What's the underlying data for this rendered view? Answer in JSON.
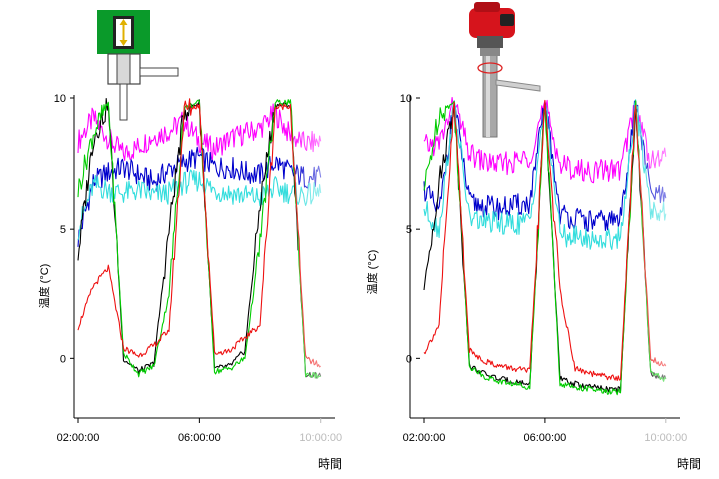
{
  "chart_data": [
    {
      "type": "line",
      "ylabel": "温度 (°C)",
      "xlabel": "時間",
      "ylim": [
        -2,
        10
      ],
      "xlim": [
        "02:00:00",
        "10:00:00"
      ],
      "y_ticks": [
        "0",
        "5",
        "10"
      ],
      "x_ticks": [
        "02:00:00",
        "06:00:00",
        "10:00:00"
      ],
      "grid": false,
      "icon": "green-pressure-sensor-icon",
      "series": [
        {
          "color": "#ff00ff",
          "x": [
            "02:00",
            "02:30",
            "03:00",
            "03:30",
            "04:00",
            "04:30",
            "05:00",
            "05:30",
            "06:00",
            "06:30",
            "07:00",
            "07:30",
            "08:00",
            "08:30",
            "09:00",
            "09:30",
            "10:00"
          ],
          "values": [
            8.4,
            9.3,
            8.5,
            7.9,
            8.2,
            8.6,
            8.8,
            9.2,
            8.4,
            8.1,
            8.5,
            8.7,
            8.9,
            9.5,
            8.6,
            8.3,
            8.4
          ]
        },
        {
          "color": "#0000cc",
          "x": [
            "02:00",
            "02:30",
            "03:00",
            "03:30",
            "04:00",
            "04:30",
            "05:00",
            "05:30",
            "06:00",
            "06:30",
            "07:00",
            "07:30",
            "08:00",
            "08:30",
            "09:00",
            "09:30",
            "10:00"
          ],
          "values": [
            4.6,
            6.8,
            7.2,
            7.4,
            7.1,
            6.8,
            7.3,
            7.6,
            7.8,
            7.4,
            7.4,
            7.2,
            7.1,
            7.6,
            7.2,
            7.0,
            7.0
          ]
        },
        {
          "color": "#33dddd",
          "x": [
            "02:00",
            "02:30",
            "03:00",
            "03:30",
            "04:00",
            "04:30",
            "05:00",
            "05:30",
            "06:00",
            "06:30",
            "07:00",
            "07:30",
            "08:00",
            "08:30",
            "09:00",
            "09:30",
            "10:00"
          ],
          "values": [
            5.0,
            6.7,
            6.5,
            6.4,
            6.5,
            6.3,
            6.4,
            6.8,
            6.9,
            6.5,
            6.4,
            6.3,
            6.2,
            6.6,
            6.4,
            6.3,
            6.4
          ]
        },
        {
          "color": "#000000",
          "x": [
            "02:00",
            "02:30",
            "03:00",
            "03:30",
            "04:00",
            "04:30",
            "05:00",
            "05:30",
            "06:00",
            "06:30",
            "07:00",
            "07:30",
            "08:00",
            "08:30",
            "09:00",
            "09:30",
            "10:00"
          ],
          "values": [
            4.0,
            8.5,
            9.8,
            0.0,
            -0.5,
            -0.2,
            5.0,
            9.6,
            9.9,
            -0.4,
            -0.3,
            0.3,
            6.0,
            9.8,
            9.8,
            -0.6,
            -0.7
          ]
        },
        {
          "color": "#00cc00",
          "x": [
            "02:00",
            "02:30",
            "03:00",
            "03:30",
            "04:00",
            "04:30",
            "05:00",
            "05:30",
            "06:00",
            "06:30",
            "07:00",
            "07:30",
            "08:00",
            "08:30",
            "09:00",
            "09:30",
            "10:00"
          ],
          "values": [
            6.5,
            8.7,
            9.9,
            0.2,
            -0.6,
            -0.3,
            2.5,
            9.7,
            9.9,
            -0.5,
            -0.4,
            0.0,
            4.5,
            9.9,
            9.9,
            -0.6,
            -0.7
          ]
        },
        {
          "color": "#ee1111",
          "x": [
            "02:00",
            "02:30",
            "03:00",
            "03:30",
            "04:00",
            "04:30",
            "05:00",
            "05:30",
            "06:00",
            "06:30",
            "07:00",
            "07:30",
            "08:00",
            "08:30",
            "09:00",
            "09:30",
            "10:00"
          ],
          "values": [
            1.2,
            2.8,
            3.5,
            0.4,
            0.1,
            0.5,
            1.1,
            9.6,
            9.8,
            0.2,
            0.3,
            0.8,
            1.3,
            9.7,
            9.8,
            0.0,
            -0.3
          ]
        }
      ]
    },
    {
      "type": "line",
      "ylabel": "温度 (°C)",
      "xlabel": "時間",
      "ylim": [
        -2,
        10
      ],
      "xlim": [
        "02:00:00",
        "10:00:00"
      ],
      "y_ticks": [
        "0",
        "5",
        "10"
      ],
      "x_ticks": [
        "02:00:00",
        "06:00:00",
        "10:00:00"
      ],
      "grid": false,
      "icon": "red-remote-sensor-icon",
      "series": [
        {
          "color": "#ff00ff",
          "x": [
            "02:00",
            "02:30",
            "03:00",
            "03:30",
            "04:00",
            "04:30",
            "05:00",
            "05:30",
            "06:00",
            "06:30",
            "07:00",
            "07:30",
            "08:00",
            "08:30",
            "09:00",
            "09:30",
            "10:00"
          ],
          "values": [
            8.2,
            8.3,
            9.9,
            7.9,
            7.6,
            7.5,
            7.6,
            7.8,
            9.9,
            7.5,
            7.3,
            7.2,
            7.3,
            7.3,
            9.9,
            7.6,
            7.8
          ]
        },
        {
          "color": "#0000cc",
          "x": [
            "02:00",
            "02:30",
            "03:00",
            "03:30",
            "04:00",
            "04:30",
            "05:00",
            "05:30",
            "06:00",
            "06:30",
            "07:00",
            "07:30",
            "08:00",
            "08:30",
            "09:00",
            "09:30",
            "10:00"
          ],
          "values": [
            6.6,
            5.6,
            9.9,
            6.0,
            5.9,
            5.8,
            5.9,
            6.0,
            9.9,
            5.6,
            5.4,
            5.3,
            5.3,
            5.4,
            9.9,
            6.4,
            6.2
          ]
        },
        {
          "color": "#33dddd",
          "x": [
            "02:00",
            "02:30",
            "03:00",
            "03:30",
            "04:00",
            "04:30",
            "05:00",
            "05:30",
            "06:00",
            "06:30",
            "07:00",
            "07:30",
            "08:00",
            "08:30",
            "09:00",
            "09:30",
            "10:00"
          ],
          "values": [
            5.8,
            5.0,
            9.9,
            5.4,
            5.3,
            5.2,
            5.2,
            5.3,
            9.9,
            4.8,
            4.7,
            4.6,
            4.6,
            4.7,
            9.9,
            5.8,
            5.6
          ]
        },
        {
          "color": "#000000",
          "x": [
            "02:00",
            "02:30",
            "03:00",
            "03:30",
            "04:00",
            "04:30",
            "05:00",
            "05:30",
            "06:00",
            "06:30",
            "07:00",
            "07:30",
            "08:00",
            "08:30",
            "09:00",
            "09:30",
            "10:00"
          ],
          "values": [
            2.7,
            6.8,
            9.9,
            -0.3,
            -0.6,
            -0.8,
            -0.9,
            -1.0,
            9.9,
            -0.8,
            -1.0,
            -1.1,
            -1.2,
            -1.2,
            9.9,
            -0.6,
            -0.8
          ]
        },
        {
          "color": "#00cc00",
          "x": [
            "02:00",
            "02:30",
            "03:00",
            "03:30",
            "04:00",
            "04:30",
            "05:00",
            "05:30",
            "06:00",
            "06:30",
            "07:00",
            "07:30",
            "08:00",
            "08:30",
            "09:00",
            "09:30",
            "10:00"
          ],
          "values": [
            6.5,
            9.5,
            9.9,
            -0.3,
            -0.7,
            -0.9,
            -1.0,
            -1.1,
            9.9,
            -1.0,
            -1.1,
            -1.2,
            -1.3,
            -1.3,
            9.9,
            -0.6,
            -0.8
          ]
        },
        {
          "color": "#ee1111",
          "x": [
            "02:00",
            "02:30",
            "03:00",
            "03:30",
            "04:00",
            "04:30",
            "05:00",
            "05:30",
            "06:00",
            "06:30",
            "07:00",
            "07:30",
            "08:00",
            "08:30",
            "09:00",
            "09:30",
            "10:00"
          ],
          "values": [
            0.2,
            1.3,
            9.9,
            0.3,
            -0.1,
            -0.3,
            -0.4,
            -0.5,
            9.9,
            2.6,
            -0.4,
            -0.6,
            -0.7,
            -0.8,
            9.9,
            0.0,
            -0.3
          ]
        }
      ]
    }
  ]
}
